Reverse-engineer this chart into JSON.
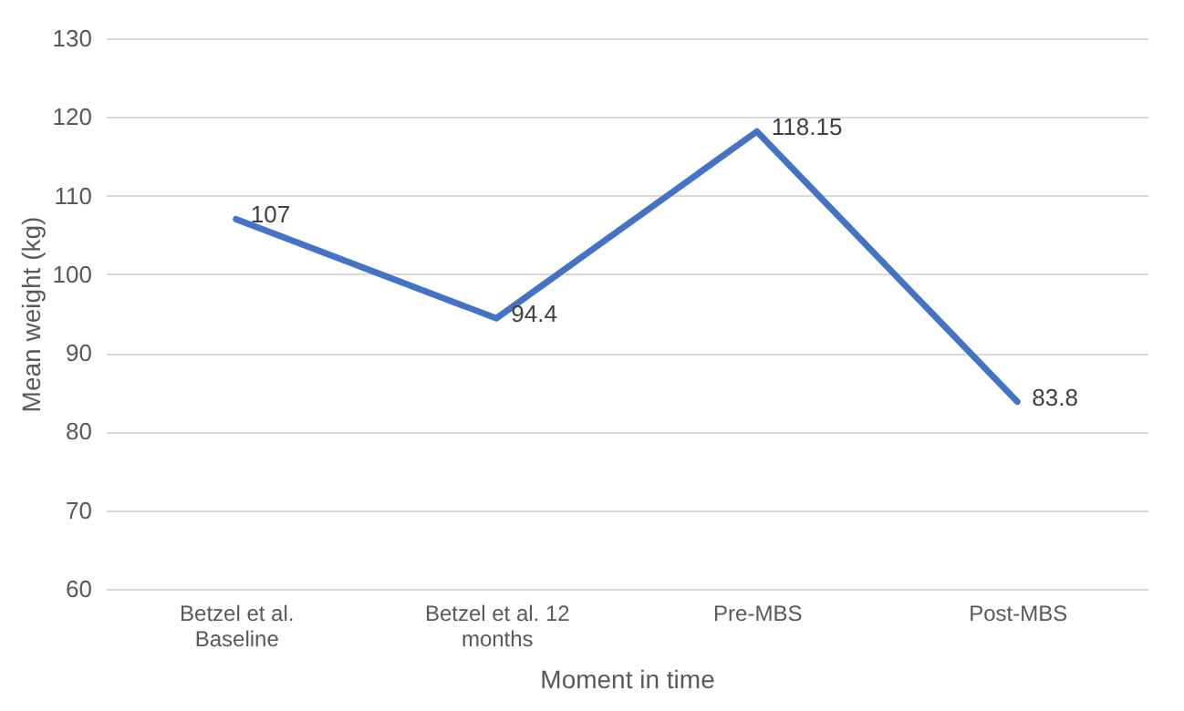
{
  "chart_data": {
    "type": "line",
    "categories": [
      "Betzel et al. Baseline",
      "Betzel et al. 12 months",
      "Pre-MBS",
      "Post-MBS"
    ],
    "series": [
      {
        "color": "#4472c4",
        "values": [
          107,
          94.4,
          118.15,
          83.8
        ]
      }
    ],
    "xlabel": "Moment in time",
    "ylabel": "Mean weight (kg)",
    "ylim": [
      60,
      130
    ],
    "yticks": [
      60,
      70,
      80,
      90,
      100,
      110,
      120,
      130
    ],
    "grid": "y",
    "marker": "none",
    "line_style": "solid",
    "data_labels": true
  }
}
